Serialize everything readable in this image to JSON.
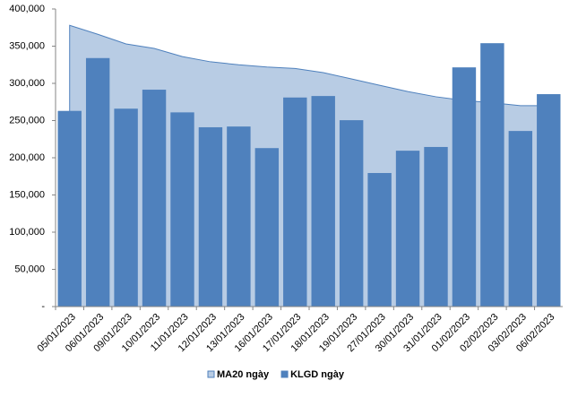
{
  "chart_data": {
    "type": "bar",
    "categories": [
      "05/01/2023",
      "06/01/2023",
      "09/01/2023",
      "10/01/2023",
      "11/01/2023",
      "12/01/2023",
      "13/01/2023",
      "16/01/2023",
      "17/01/2023",
      "18/01/2023",
      "19/01/2023",
      "27/01/2023",
      "30/01/2023",
      "31/01/2023",
      "01/02/2023",
      "02/02/2023",
      "03/02/2023",
      "06/02/2023"
    ],
    "series": [
      {
        "name": "MA20 ngày",
        "type": "area",
        "color": "#b8cce4",
        "stroke": "#4f81bd",
        "values": [
          378000,
          366000,
          353000,
          347000,
          336000,
          329000,
          325000,
          322000,
          320000,
          314500,
          306000,
          297500,
          289000,
          282000,
          277000,
          274000,
          270000,
          270000
        ]
      },
      {
        "name": "KLGD ngày",
        "type": "bar",
        "color": "#4f81bd",
        "values": [
          263000,
          334000,
          266000,
          291500,
          261000,
          241000,
          242000,
          213000,
          281000,
          283000,
          250500,
          179500,
          209500,
          214500,
          321500,
          354000,
          236000,
          285500
        ]
      }
    ],
    "ylim": [
      0,
      400000
    ],
    "yticks": [
      {
        "value": 0,
        "label": "-"
      },
      {
        "value": 50000,
        "label": "50,000"
      },
      {
        "value": 100000,
        "label": "100,000"
      },
      {
        "value": 150000,
        "label": "150,000"
      },
      {
        "value": 200000,
        "label": "200,000"
      },
      {
        "value": 250000,
        "label": "250,000"
      },
      {
        "value": 300000,
        "label": "300,000"
      },
      {
        "value": 350000,
        "label": "350,000"
      },
      {
        "value": 400000,
        "label": "400,000"
      }
    ],
    "legend": "bottom"
  }
}
